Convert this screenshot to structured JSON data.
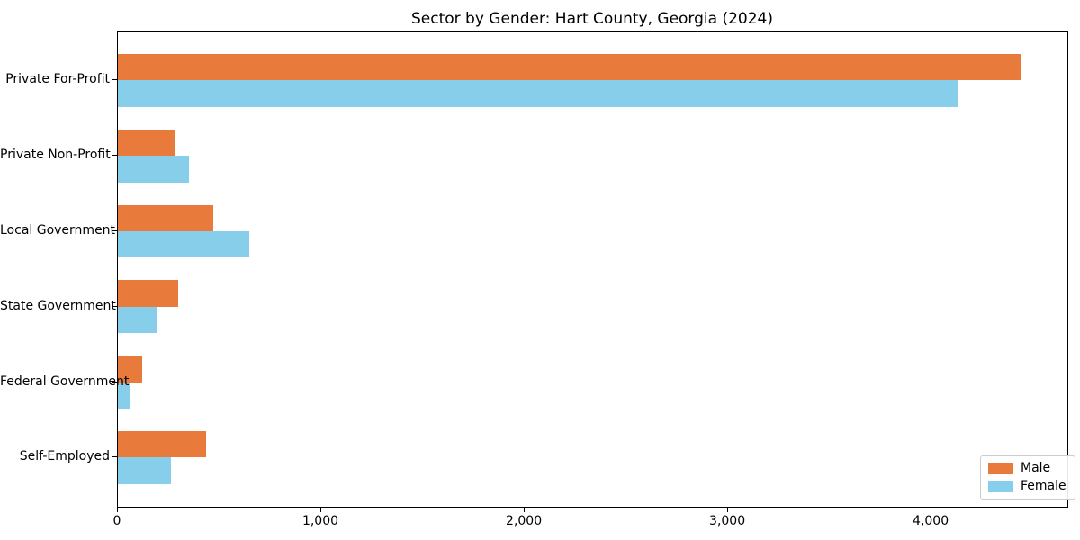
{
  "chart_data": {
    "type": "bar",
    "orientation": "horizontal",
    "title": "Sector by Gender: Hart County, Georgia (2024)",
    "xlabel": "",
    "ylabel": "",
    "categories": [
      "Private For-Profit",
      "Private Non-Profit",
      "Local Government",
      "State Government",
      "Federal Government",
      "Self-Employed"
    ],
    "series": [
      {
        "name": "Male",
        "color": "#e87a3c",
        "values": [
          4440,
          285,
          470,
          295,
          120,
          435
        ]
      },
      {
        "name": "Female",
        "color": "#87ceeb",
        "values": [
          4130,
          350,
          645,
          195,
          62,
          260
        ]
      }
    ],
    "xlim": [
      0,
      4672
    ],
    "xticks": [
      {
        "value": 0,
        "label": "0"
      },
      {
        "value": 1000,
        "label": "1,000"
      },
      {
        "value": 2000,
        "label": "2,000"
      },
      {
        "value": 3000,
        "label": "3,000"
      },
      {
        "value": 4000,
        "label": "4,000"
      }
    ],
    "grid": false,
    "legend": {
      "position": "lower right"
    }
  }
}
